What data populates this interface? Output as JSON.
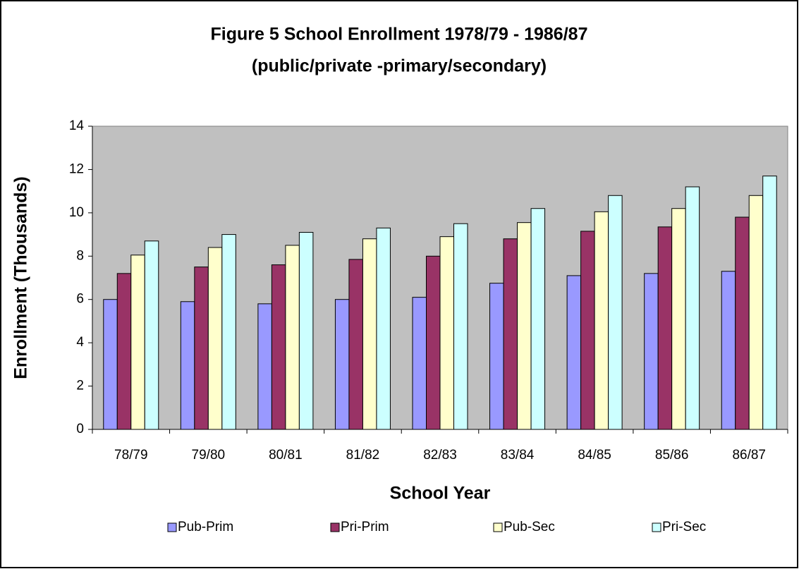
{
  "chart_data": {
    "type": "bar",
    "title": "Figure 5 School Enrollment 1978/79 - 1986/87",
    "subtitle": "(public/private -primary/secondary)",
    "x_label": "School Year",
    "y_label": "Enrollment (Thousands)",
    "categories": [
      "78/79",
      "79/80",
      "80/81",
      "81/82",
      "82/83",
      "83/84",
      "84/85",
      "85/86",
      "86/87"
    ],
    "series": [
      {
        "name": "Pub-Prim",
        "color": "#9999ff",
        "values": [
          6.0,
          5.9,
          5.8,
          6.0,
          6.1,
          6.75,
          7.1,
          7.2,
          7.3
        ]
      },
      {
        "name": "Pri-Prim",
        "color": "#993366",
        "values": [
          7.2,
          7.5,
          7.6,
          7.85,
          8.0,
          8.8,
          9.15,
          9.35,
          9.8
        ]
      },
      {
        "name": "Pub-Sec",
        "color": "#ffffcc",
        "values": [
          8.05,
          8.4,
          8.5,
          8.8,
          8.9,
          9.55,
          10.05,
          10.2,
          10.8
        ]
      },
      {
        "name": "Pri-Sec",
        "color": "#ccffff",
        "values": [
          8.7,
          9.0,
          9.1,
          9.3,
          9.5,
          10.2,
          10.8,
          11.2,
          11.7
        ]
      }
    ],
    "ylim": [
      0,
      14
    ],
    "yticks": [
      0,
      2,
      4,
      6,
      8,
      10,
      12,
      14
    ],
    "plot_background": "#c0c0c0",
    "grid": false,
    "legend": "bottom"
  }
}
